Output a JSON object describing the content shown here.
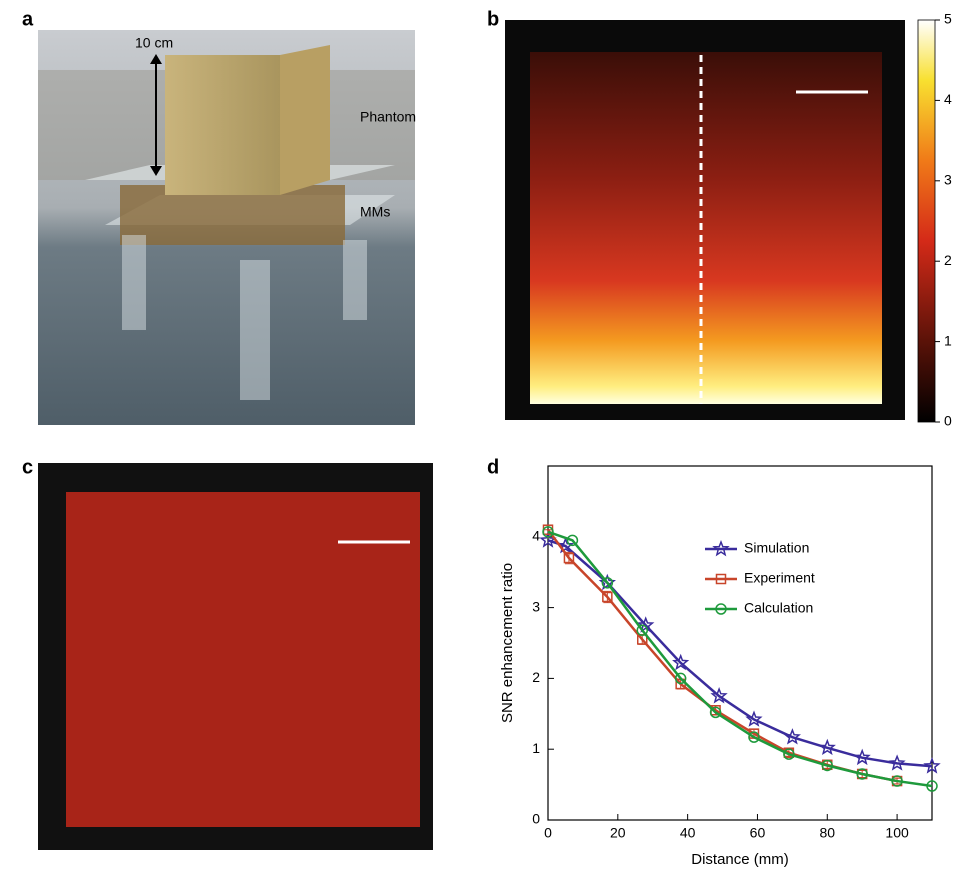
{
  "panel_labels": [
    "a",
    "b",
    "c",
    "d"
  ],
  "photo": {
    "annotations": [
      "10 cm",
      "Phantom",
      "MMs"
    ]
  },
  "colorbar": {
    "lim": [
      0,
      5
    ],
    "ticks": [
      0,
      1,
      2,
      3,
      4,
      5
    ]
  },
  "chart_data": {
    "type": "line",
    "x_label": "Distance (mm)",
    "y_label": "SNR enhancement ratio",
    "xlim": [
      0,
      110
    ],
    "xticks": [
      0,
      20,
      40,
      60,
      80,
      100
    ],
    "ylim": [
      0,
      5
    ],
    "yticks": [
      0,
      1,
      2,
      3,
      4
    ],
    "series": [
      {
        "name": "Simulation",
        "color": "#3a2c9c",
        "marker": "star",
        "x": [
          0,
          5,
          17,
          28,
          38,
          49,
          59,
          70,
          80,
          90,
          100,
          110
        ],
        "values": [
          3.95,
          3.87,
          3.35,
          2.75,
          2.22,
          1.75,
          1.42,
          1.17,
          1.02,
          0.88,
          0.8,
          0.76
        ]
      },
      {
        "name": "Experiment",
        "color": "#c8452a",
        "marker": "square",
        "x": [
          0,
          6,
          17,
          27,
          38,
          48,
          59,
          69,
          80,
          90,
          100
        ],
        "values": [
          4.1,
          3.7,
          3.15,
          2.55,
          1.92,
          1.55,
          1.22,
          0.95,
          0.78,
          0.65,
          0.55
        ],
        "errors": [
          0,
          0.08,
          0.08,
          0.07,
          0.07,
          0.06,
          0.06,
          0.05,
          0.05,
          0.05,
          0.04
        ]
      },
      {
        "name": "Calculation",
        "color": "#1e9a3c",
        "marker": "circle",
        "x": [
          0,
          7,
          17,
          27,
          38,
          48,
          59,
          69,
          80,
          90,
          100,
          110
        ],
        "values": [
          4.07,
          3.95,
          3.35,
          2.68,
          2.0,
          1.52,
          1.17,
          0.93,
          0.77,
          0.65,
          0.55,
          0.48
        ]
      }
    ]
  }
}
